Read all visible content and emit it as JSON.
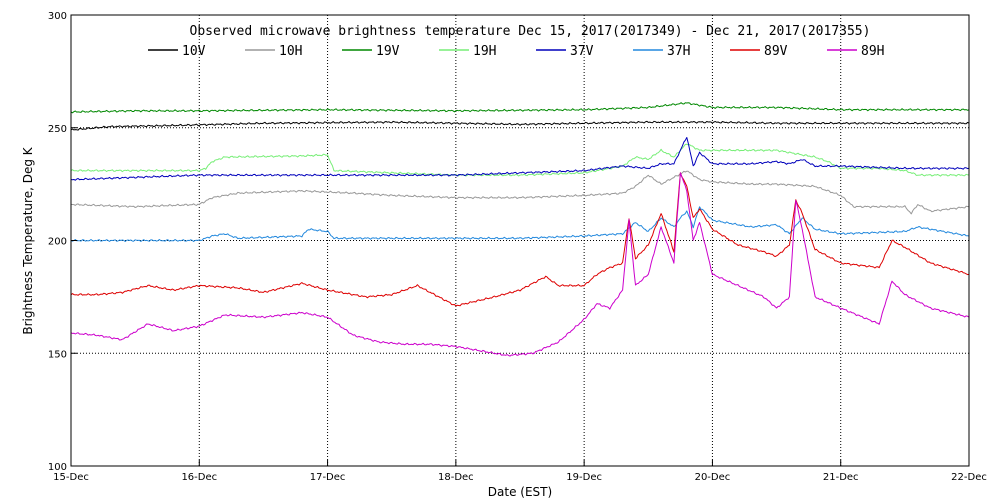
{
  "chart_data": {
    "type": "line",
    "title": "Observed microwave brightness temperature Dec 15, 2017(2017349) - Dec 21, 2017(2017355)",
    "xlabel": "Date (EST)",
    "ylabel": "Brightness Temperature, Deg K",
    "xlim": [
      0,
      7
    ],
    "ylim": [
      100,
      300
    ],
    "x_ticks": [
      {
        "value": 0,
        "label": "15-Dec"
      },
      {
        "value": 1,
        "label": "16-Dec"
      },
      {
        "value": 2,
        "label": "17-Dec"
      },
      {
        "value": 3,
        "label": "18-Dec"
      },
      {
        "value": 4,
        "label": "19-Dec"
      },
      {
        "value": 5,
        "label": "20-Dec"
      },
      {
        "value": 6,
        "label": "21-Dec"
      },
      {
        "value": 7,
        "label": "22-Dec"
      }
    ],
    "y_ticks": [
      {
        "value": 100,
        "label": "100"
      },
      {
        "value": 150,
        "label": "150"
      },
      {
        "value": 200,
        "label": "200"
      },
      {
        "value": 250,
        "label": "250"
      },
      {
        "value": 300,
        "label": "300"
      }
    ],
    "grid": "dotted",
    "legend_position": "top",
    "series": [
      {
        "name": "10V",
        "color": "#000000",
        "points": [
          [
            0,
            249
          ],
          [
            0.3,
            250.5
          ],
          [
            0.8,
            251
          ],
          [
            1.5,
            252
          ],
          [
            2.5,
            252.5
          ],
          [
            3,
            252
          ],
          [
            3.5,
            251.5
          ],
          [
            4,
            252
          ],
          [
            4.5,
            252.5
          ],
          [
            5,
            252.5
          ],
          [
            5.5,
            252
          ],
          [
            6,
            252
          ],
          [
            6.5,
            252
          ],
          [
            7,
            252
          ]
        ]
      },
      {
        "name": "10H",
        "color": "#999999",
        "points": [
          [
            0,
            216
          ],
          [
            0.5,
            215
          ],
          [
            1,
            216
          ],
          [
            1.1,
            219
          ],
          [
            1.3,
            221
          ],
          [
            1.8,
            222
          ],
          [
            2.2,
            221
          ],
          [
            2.5,
            220
          ],
          [
            3,
            219
          ],
          [
            3.5,
            219
          ],
          [
            4,
            220
          ],
          [
            4.3,
            221
          ],
          [
            4.4,
            224
          ],
          [
            4.5,
            229
          ],
          [
            4.6,
            225
          ],
          [
            4.7,
            228
          ],
          [
            4.8,
            231
          ],
          [
            4.9,
            227
          ],
          [
            5,
            226
          ],
          [
            5.3,
            225
          ],
          [
            5.5,
            225
          ],
          [
            5.8,
            224
          ],
          [
            5.9,
            222
          ],
          [
            6,
            220
          ],
          [
            6.1,
            215
          ],
          [
            6.3,
            215
          ],
          [
            6.5,
            215
          ],
          [
            6.55,
            212
          ],
          [
            6.6,
            216
          ],
          [
            6.7,
            213
          ],
          [
            7,
            215
          ]
        ]
      },
      {
        "name": "19V",
        "color": "#008800",
        "points": [
          [
            0,
            257
          ],
          [
            0.5,
            257.5
          ],
          [
            1,
            257.5
          ],
          [
            2,
            258
          ],
          [
            3,
            257.5
          ],
          [
            4,
            258
          ],
          [
            4.5,
            259
          ],
          [
            4.8,
            261
          ],
          [
            5,
            259
          ],
          [
            5.5,
            259
          ],
          [
            6,
            258
          ],
          [
            7,
            258
          ]
        ]
      },
      {
        "name": "19H",
        "color": "#77ee77",
        "points": [
          [
            0,
            231
          ],
          [
            0.5,
            231
          ],
          [
            1,
            231
          ],
          [
            1.05,
            232
          ],
          [
            1.1,
            235
          ],
          [
            1.2,
            237
          ],
          [
            1.8,
            237.5
          ],
          [
            2,
            238
          ],
          [
            2.05,
            231
          ],
          [
            2.5,
            230
          ],
          [
            3,
            229
          ],
          [
            3.5,
            229
          ],
          [
            4,
            230
          ],
          [
            4.3,
            233
          ],
          [
            4.4,
            237
          ],
          [
            4.5,
            236
          ],
          [
            4.6,
            240
          ],
          [
            4.7,
            237
          ],
          [
            4.8,
            243
          ],
          [
            4.9,
            240
          ],
          [
            5,
            240
          ],
          [
            5.3,
            240
          ],
          [
            5.5,
            240
          ],
          [
            5.6,
            239
          ],
          [
            5.8,
            237
          ],
          [
            5.9,
            235
          ],
          [
            6,
            232
          ],
          [
            6.3,
            232
          ],
          [
            6.5,
            231
          ],
          [
            6.6,
            229
          ],
          [
            7,
            229
          ]
        ]
      },
      {
        "name": "37V",
        "color": "#0000bb",
        "points": [
          [
            0,
            227
          ],
          [
            0.5,
            228
          ],
          [
            1,
            229
          ],
          [
            2,
            229
          ],
          [
            3,
            229
          ],
          [
            4,
            231
          ],
          [
            4.3,
            233
          ],
          [
            4.5,
            232
          ],
          [
            4.6,
            234
          ],
          [
            4.7,
            234
          ],
          [
            4.8,
            246
          ],
          [
            4.85,
            233
          ],
          [
            4.9,
            239
          ],
          [
            5,
            234
          ],
          [
            5.3,
            234
          ],
          [
            5.5,
            235
          ],
          [
            5.6,
            234
          ],
          [
            5.7,
            236
          ],
          [
            5.8,
            233
          ],
          [
            6,
            233
          ],
          [
            6.5,
            232
          ],
          [
            7,
            232
          ]
        ]
      },
      {
        "name": "37H",
        "color": "#2288dd",
        "points": [
          [
            0,
            200
          ],
          [
            0.5,
            200
          ],
          [
            1,
            200
          ],
          [
            1.1,
            202
          ],
          [
            1.2,
            203
          ],
          [
            1.3,
            201
          ],
          [
            1.8,
            202
          ],
          [
            1.85,
            205
          ],
          [
            2,
            204
          ],
          [
            2.05,
            201
          ],
          [
            2.5,
            201
          ],
          [
            3,
            201
          ],
          [
            3.5,
            201
          ],
          [
            4,
            202
          ],
          [
            4.3,
            203
          ],
          [
            4.4,
            208
          ],
          [
            4.5,
            204
          ],
          [
            4.6,
            210
          ],
          [
            4.7,
            206
          ],
          [
            4.75,
            210
          ],
          [
            4.8,
            213
          ],
          [
            4.85,
            206
          ],
          [
            4.9,
            215
          ],
          [
            5,
            209
          ],
          [
            5.3,
            206
          ],
          [
            5.5,
            207
          ],
          [
            5.6,
            203
          ],
          [
            5.7,
            210
          ],
          [
            5.8,
            205
          ],
          [
            6,
            203
          ],
          [
            6.5,
            204
          ],
          [
            6.6,
            206
          ],
          [
            7,
            202
          ]
        ]
      },
      {
        "name": "89V",
        "color": "#dd0000",
        "points": [
          [
            0,
            176
          ],
          [
            0.2,
            176
          ],
          [
            0.4,
            177
          ],
          [
            0.6,
            180
          ],
          [
            0.8,
            178
          ],
          [
            1,
            180
          ],
          [
            1.3,
            179
          ],
          [
            1.5,
            177
          ],
          [
            1.8,
            181
          ],
          [
            2,
            178
          ],
          [
            2.3,
            175
          ],
          [
            2.5,
            176
          ],
          [
            2.7,
            180
          ],
          [
            3,
            171
          ],
          [
            3.3,
            175
          ],
          [
            3.5,
            178
          ],
          [
            3.7,
            184
          ],
          [
            3.8,
            180
          ],
          [
            4,
            180
          ],
          [
            4.1,
            185
          ],
          [
            4.2,
            188
          ],
          [
            4.3,
            190
          ],
          [
            4.35,
            210
          ],
          [
            4.4,
            192
          ],
          [
            4.5,
            198
          ],
          [
            4.6,
            212
          ],
          [
            4.7,
            195
          ],
          [
            4.75,
            230
          ],
          [
            4.8,
            224
          ],
          [
            4.85,
            210
          ],
          [
            4.9,
            214
          ],
          [
            5,
            205
          ],
          [
            5.2,
            198
          ],
          [
            5.4,
            195
          ],
          [
            5.5,
            193
          ],
          [
            5.6,
            198
          ],
          [
            5.65,
            218
          ],
          [
            5.7,
            212
          ],
          [
            5.8,
            196
          ],
          [
            6,
            190
          ],
          [
            6.3,
            188
          ],
          [
            6.4,
            200
          ],
          [
            6.5,
            197
          ],
          [
            6.7,
            190
          ],
          [
            7,
            185
          ]
        ]
      },
      {
        "name": "89H",
        "color": "#cc00cc",
        "points": [
          [
            0,
            159
          ],
          [
            0.2,
            158
          ],
          [
            0.4,
            156
          ],
          [
            0.6,
            163
          ],
          [
            0.8,
            160
          ],
          [
            1,
            162
          ],
          [
            1.2,
            167
          ],
          [
            1.5,
            166
          ],
          [
            1.8,
            168
          ],
          [
            2,
            166
          ],
          [
            2.2,
            158
          ],
          [
            2.4,
            155
          ],
          [
            2.6,
            154
          ],
          [
            2.8,
            154
          ],
          [
            3,
            153
          ],
          [
            3.2,
            151
          ],
          [
            3.4,
            149
          ],
          [
            3.6,
            150
          ],
          [
            3.8,
            155
          ],
          [
            4,
            165
          ],
          [
            4.1,
            172
          ],
          [
            4.2,
            170
          ],
          [
            4.3,
            178
          ],
          [
            4.35,
            209
          ],
          [
            4.4,
            180
          ],
          [
            4.5,
            185
          ],
          [
            4.6,
            206
          ],
          [
            4.7,
            190
          ],
          [
            4.75,
            230
          ],
          [
            4.8,
            222
          ],
          [
            4.85,
            200
          ],
          [
            4.9,
            208
          ],
          [
            5,
            185
          ],
          [
            5.2,
            180
          ],
          [
            5.4,
            175
          ],
          [
            5.5,
            170
          ],
          [
            5.6,
            175
          ],
          [
            5.65,
            218
          ],
          [
            5.7,
            205
          ],
          [
            5.8,
            175
          ],
          [
            6,
            170
          ],
          [
            6.3,
            163
          ],
          [
            6.4,
            182
          ],
          [
            6.5,
            176
          ],
          [
            6.7,
            170
          ],
          [
            7,
            166
          ]
        ]
      }
    ]
  }
}
